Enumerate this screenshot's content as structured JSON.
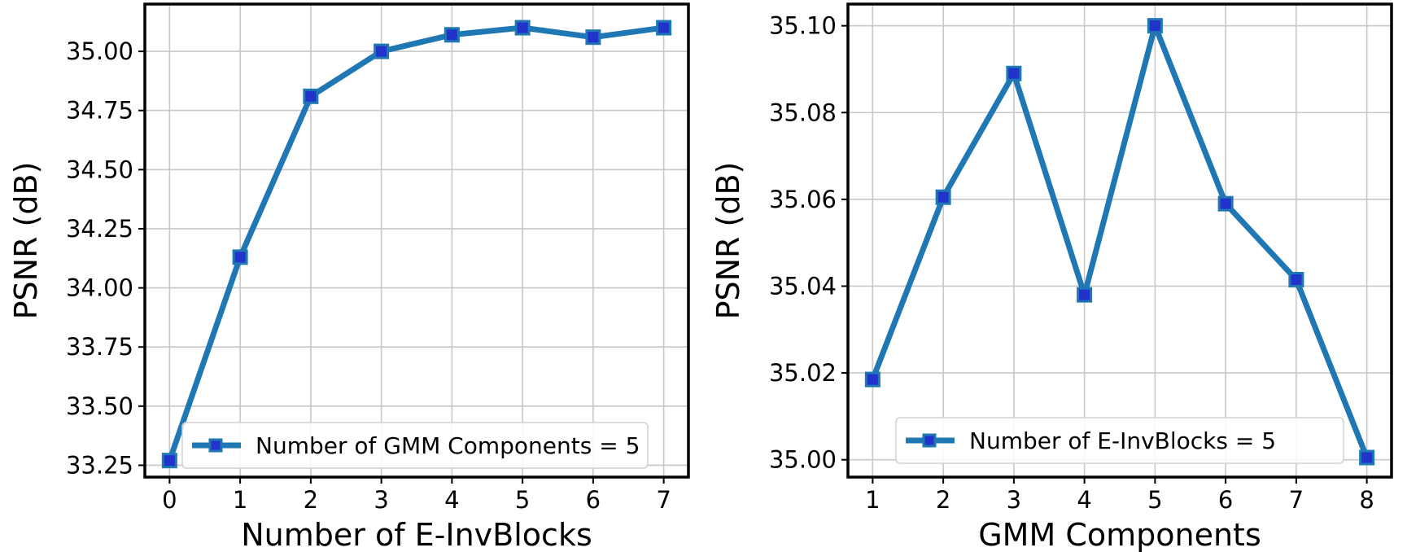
{
  "colors": {
    "series": "#1f77b4",
    "marker_fill": "#2233cc",
    "grid": "#c8c8c8"
  },
  "chart_data": [
    {
      "type": "line",
      "xlabel": "Number of E-InvBlocks",
      "ylabel": "PSNR (dB)",
      "x": [
        0,
        1,
        2,
        3,
        4,
        5,
        6,
        7
      ],
      "xticks": [
        "0",
        "1",
        "2",
        "3",
        "4",
        "5",
        "6",
        "7"
      ],
      "yticks": [
        33.25,
        33.5,
        33.75,
        34.0,
        34.25,
        34.5,
        34.75,
        35.0
      ],
      "ytick_labels": [
        "33.25",
        "33.50",
        "33.75",
        "34.00",
        "34.25",
        "34.50",
        "34.75",
        "35.00"
      ],
      "xlim": [
        -0.35,
        7.35
      ],
      "ylim": [
        33.2,
        35.2
      ],
      "grid": true,
      "legend_position": "lower-right",
      "series": [
        {
          "name": "Number of GMM Components = 5",
          "values": [
            33.27,
            34.13,
            34.81,
            35.0,
            35.07,
            35.1,
            35.06,
            35.1
          ],
          "marker": "square"
        }
      ]
    },
    {
      "type": "line",
      "xlabel": "GMM Components",
      "ylabel": "PSNR (dB)",
      "x": [
        1,
        2,
        3,
        4,
        5,
        6,
        7,
        8
      ],
      "xticks": [
        "1",
        "2",
        "3",
        "4",
        "5",
        "6",
        "7",
        "8"
      ],
      "yticks": [
        35.0,
        35.02,
        35.04,
        35.06,
        35.08,
        35.1
      ],
      "ytick_labels": [
        "35.00",
        "35.02",
        "35.04",
        "35.06",
        "35.08",
        "35.10"
      ],
      "xlim": [
        0.65,
        8.35
      ],
      "ylim": [
        34.996,
        35.105
      ],
      "grid": true,
      "legend_position": "lower-right",
      "series": [
        {
          "name": "Number of E-InvBlocks = 5",
          "values": [
            35.0185,
            35.0605,
            35.089,
            35.038,
            35.1,
            35.059,
            35.0415,
            35.0005
          ],
          "marker": "square"
        }
      ]
    }
  ]
}
